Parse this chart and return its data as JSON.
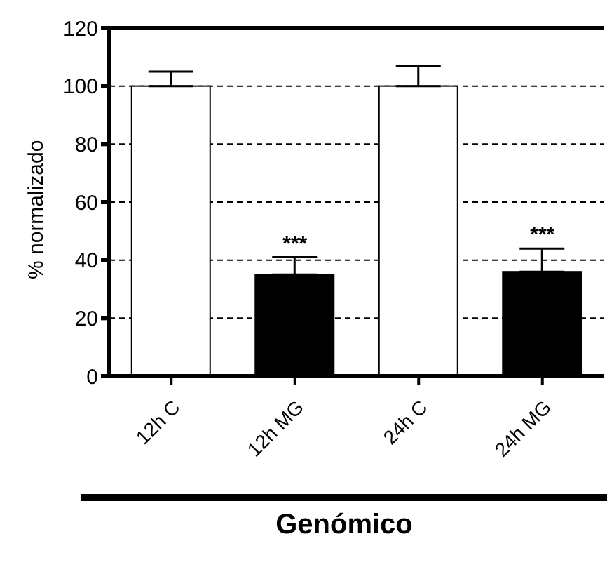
{
  "chart_data": {
    "type": "bar",
    "xlabel": "Genómico",
    "ylabel": "% normalizado",
    "categories": [
      "12h C",
      "12h MG",
      "24h C",
      "24h MG"
    ],
    "values": [
      100,
      35,
      100,
      36
    ],
    "colors": [
      "#ffffff",
      "#000000",
      "#ffffff",
      "#000000"
    ],
    "errors": [
      [
        100,
        105
      ],
      [
        35,
        41
      ],
      [
        100,
        107
      ],
      [
        36,
        44
      ]
    ],
    "ylim": [
      0,
      120
    ],
    "yticks": [
      0,
      20,
      40,
      60,
      80,
      100,
      120
    ],
    "grid": "y",
    "annotations": [
      {
        "text": "***",
        "x": "12h MG",
        "y": 41
      },
      {
        "text": "***",
        "x": "24h MG",
        "y": 44
      }
    ]
  }
}
